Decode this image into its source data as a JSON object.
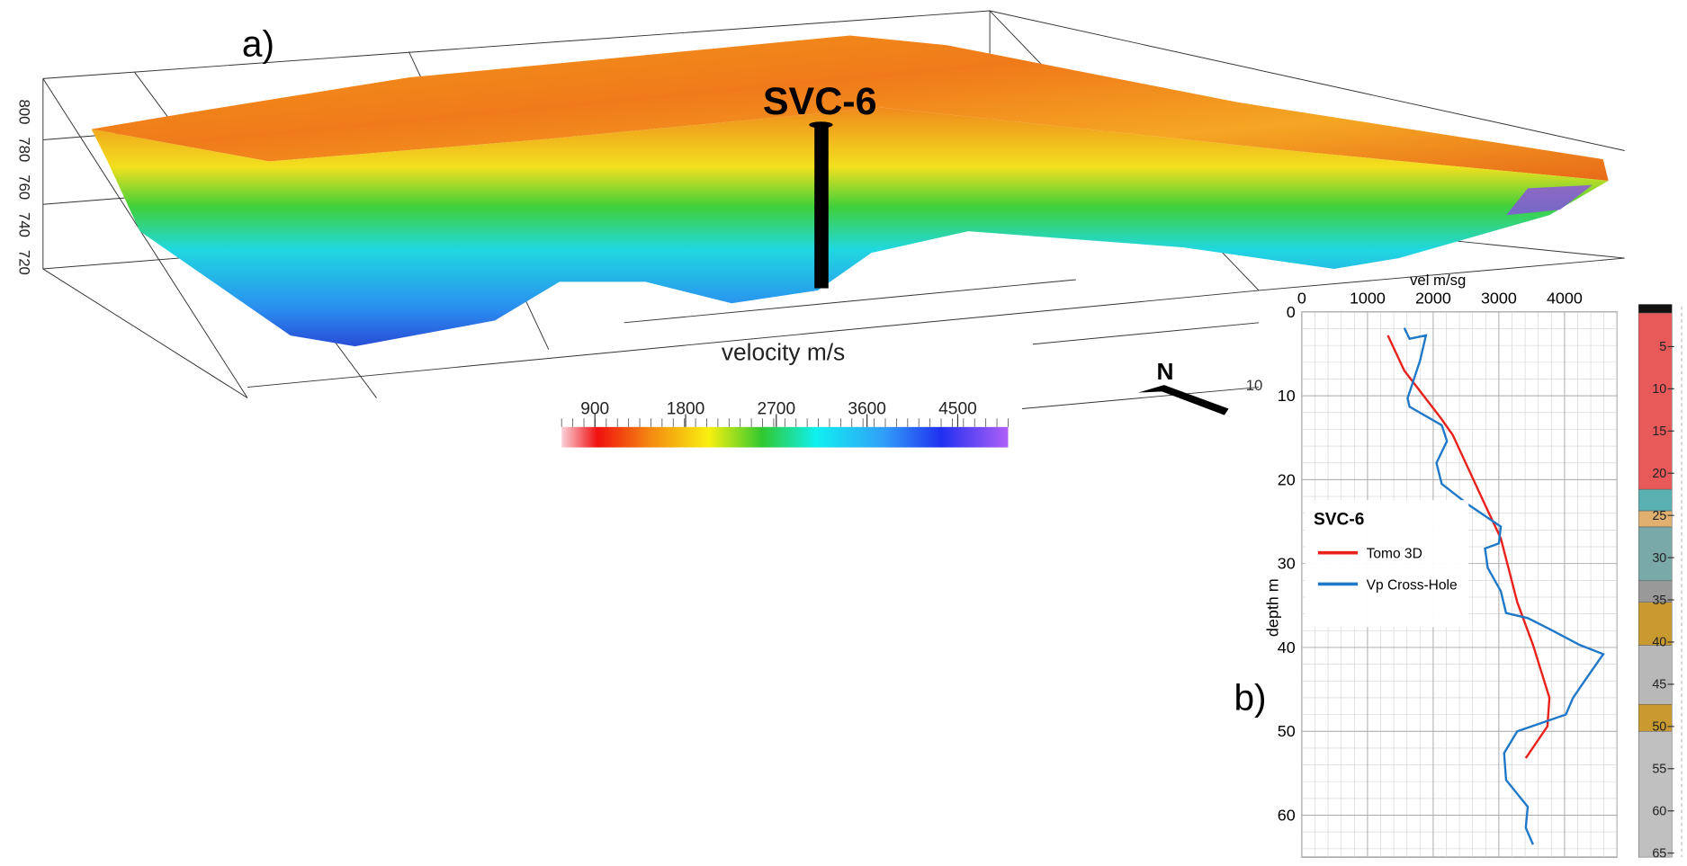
{
  "panel_a": {
    "label": "a)",
    "well": "SVC-6",
    "elevation_ticks": [
      800,
      780,
      760,
      740,
      720
    ],
    "north": "N",
    "grid_label": "10",
    "colorbar": {
      "title": "velocity m/s",
      "range": [
        570,
        5000
      ],
      "ticks": [
        900,
        1800,
        2700,
        3600,
        4500
      ]
    }
  },
  "chart_data": {
    "type": "line",
    "panel_label": "b)",
    "xlabel": "vel m/sg",
    "ylabel": "depth m",
    "xlim": [
      0,
      4800
    ],
    "xticks": [
      0,
      1000,
      2000,
      3000,
      4000
    ],
    "ylim": [
      0,
      65
    ],
    "yticks": [
      0,
      10,
      20,
      30,
      40,
      50,
      60
    ],
    "grid": true,
    "legend_title": "SVC-6",
    "series": [
      {
        "name": "Tomo 3D",
        "color": "#e8211b",
        "x": [
          2.8,
          7,
          12.8,
          14.7,
          23,
          27,
          34.6,
          39.7,
          46,
          49.4,
          53.2
        ],
        "values": [
          1310,
          1560,
          2130,
          2300,
          2790,
          3030,
          3280,
          3520,
          3770,
          3740,
          3410
        ]
      },
      {
        "name": "Vp Cross-Hole",
        "color": "#1f78c8",
        "x": [
          1.9,
          3.2,
          2.8,
          5.8,
          10.3,
          11.3,
          13.5,
          15.4,
          18,
          20.5,
          23,
          25.6,
          27.6,
          28.2,
          30.5,
          33.3,
          35.9,
          36.5,
          37.8,
          39.7,
          40.8,
          43.6,
          46,
          48,
          50,
          52.6,
          55.8,
          59,
          61.5,
          63.5
        ],
        "values": [
          1560,
          1640,
          1890,
          1800,
          1610,
          1640,
          2130,
          2210,
          2050,
          2130,
          2540,
          3030,
          3000,
          2790,
          2830,
          3030,
          3110,
          3440,
          3770,
          4230,
          4590,
          4340,
          4130,
          4020,
          3280,
          3080,
          3110,
          3440,
          3410,
          3520
        ]
      }
    ],
    "lithology_ticks": [
      5,
      10,
      15,
      20,
      25,
      30,
      35,
      40,
      45,
      50,
      55,
      60,
      65
    ]
  }
}
